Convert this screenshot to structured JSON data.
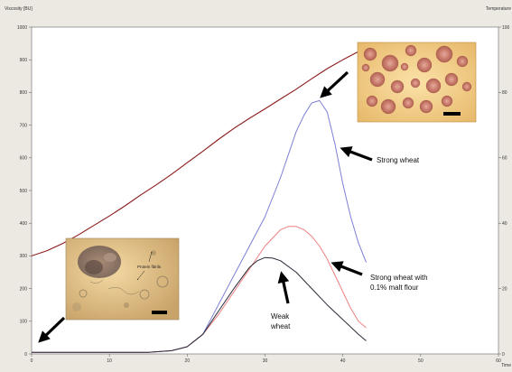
{
  "chart_data": {
    "type": "line",
    "ylabel": "Viscosity [BU]",
    "y2label": "Temperature",
    "xlabel": "Time",
    "xlim": [
      0,
      60
    ],
    "ylim": [
      0,
      1000
    ],
    "y2lim": [
      0,
      100
    ],
    "x_ticks": [
      "0",
      "10",
      "20",
      "30",
      "40",
      "50",
      "60"
    ],
    "y_ticks": [
      "0",
      "100",
      "200",
      "300",
      "400",
      "500",
      "600",
      "700",
      "800",
      "900",
      "1000"
    ],
    "y2_ticks": [
      "0",
      "20",
      "40",
      "60",
      "80",
      "100"
    ],
    "grid": false,
    "series": [
      {
        "axis": "right",
        "color": "#8b1a1a",
        "x": [
          0,
          2,
          4,
          6,
          8,
          10,
          12,
          14,
          16,
          18,
          20,
          22,
          24,
          26,
          28,
          30,
          32,
          34,
          36,
          38,
          40,
          42,
          43
        ],
        "values": [
          30,
          31.6,
          33.8,
          36.4,
          39.3,
          42.2,
          45.3,
          48.6,
          51.7,
          55,
          58.5,
          62,
          65.6,
          69,
          72.1,
          75,
          78,
          81,
          84.2,
          87.3,
          90,
          92.5,
          93.5
        ]
      },
      {
        "color": "#7b7fd4",
        "x": [
          0,
          5,
          10,
          15,
          18,
          20,
          22,
          24,
          26,
          28,
          30,
          32,
          34,
          35,
          36,
          37,
          38,
          39,
          40,
          41,
          42,
          43
        ],
        "values": [
          5,
          5,
          5,
          5,
          10,
          22,
          60,
          150,
          240,
          330,
          420,
          540,
          680,
          730,
          768,
          775,
          740,
          640,
          520,
          420,
          340,
          280
        ]
      },
      {
        "color": "#f08080",
        "x": [
          0,
          5,
          10,
          15,
          18,
          20,
          22,
          24,
          26,
          28,
          30,
          32,
          33,
          34,
          35,
          36,
          37,
          38,
          39,
          40,
          41,
          42,
          43
        ],
        "values": [
          5,
          5,
          5,
          5,
          10,
          22,
          60,
          120,
          190,
          260,
          330,
          380,
          390,
          390,
          380,
          360,
          330,
          290,
          240,
          190,
          140,
          100,
          80
        ]
      },
      {
        "color": "#2a2a3a",
        "x": [
          0,
          5,
          10,
          15,
          18,
          20,
          22,
          24,
          26,
          28,
          29,
          30,
          31,
          32,
          34,
          36,
          38,
          40,
          42,
          43
        ],
        "values": [
          5,
          5,
          5,
          5,
          10,
          22,
          60,
          130,
          200,
          265,
          285,
          295,
          293,
          285,
          250,
          200,
          150,
          105,
          60,
          40
        ]
      }
    ],
    "annotations": [
      {
        "key": "strong",
        "text": [
          "Strong wheat"
        ]
      },
      {
        "key": "malt",
        "text": [
          "Strong wheat with",
          "0.1% malt flour"
        ]
      },
      {
        "key": "weak",
        "text": [
          "Weak",
          "wheat"
        ]
      }
    ],
    "inset_labels": [
      "Protein fibrils"
    ]
  }
}
